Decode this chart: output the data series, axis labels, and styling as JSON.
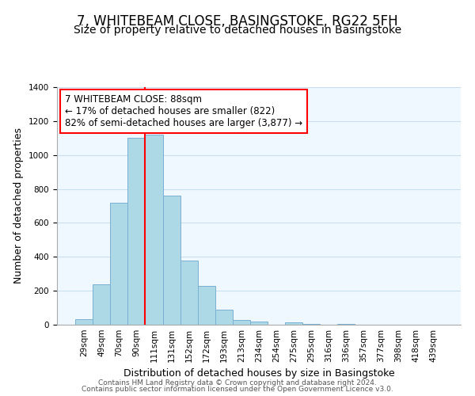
{
  "title": "7, WHITEBEAM CLOSE, BASINGSTOKE, RG22 5FH",
  "subtitle": "Size of property relative to detached houses in Basingstoke",
  "xlabel": "Distribution of detached houses by size in Basingstoke",
  "ylabel": "Number of detached properties",
  "bin_labels": [
    "29sqm",
    "49sqm",
    "70sqm",
    "90sqm",
    "111sqm",
    "131sqm",
    "152sqm",
    "172sqm",
    "193sqm",
    "213sqm",
    "234sqm",
    "254sqm",
    "275sqm",
    "295sqm",
    "316sqm",
    "336sqm",
    "357sqm",
    "377sqm",
    "398sqm",
    "418sqm",
    "439sqm"
  ],
  "bar_values": [
    35,
    240,
    720,
    1100,
    1120,
    760,
    380,
    230,
    90,
    30,
    20,
    0,
    15,
    5,
    0,
    5,
    0,
    0,
    0,
    0,
    0
  ],
  "bar_color": "#add8e6",
  "bar_edge_color": "#7ab0d4",
  "vline_color": "red",
  "annotation_line1": "7 WHITEBEAM CLOSE: 88sqm",
  "annotation_line2": "← 17% of detached houses are smaller (822)",
  "annotation_line3": "82% of semi-detached houses are larger (3,877) →",
  "annotation_box_color": "white",
  "annotation_box_edge_color": "red",
  "ylim": [
    0,
    1400
  ],
  "yticks": [
    0,
    200,
    400,
    600,
    800,
    1000,
    1200,
    1400
  ],
  "footer1": "Contains HM Land Registry data © Crown copyright and database right 2024.",
  "footer2": "Contains public sector information licensed under the Open Government Licence v3.0.",
  "title_fontsize": 12,
  "subtitle_fontsize": 10,
  "axis_label_fontsize": 9,
  "tick_fontsize": 7.5,
  "annotation_fontsize": 8.5,
  "footer_fontsize": 6.5,
  "bg_color": "#f0f8ff"
}
